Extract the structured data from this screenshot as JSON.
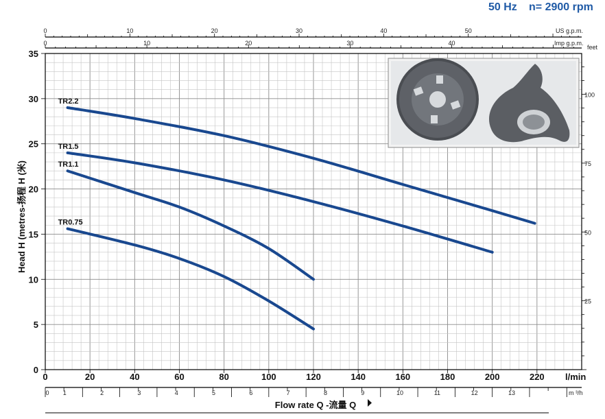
{
  "header": {
    "freq": "50 Hz",
    "speed": "n= 2900 rpm",
    "color": "#1f5aa6"
  },
  "chart_data": {
    "type": "line",
    "x_label": "Flow rate Q -流量 Q",
    "y_label": "Head H (metres-扬程 H (米)",
    "x_unit": "l/min",
    "y_unit_right": "feet",
    "xlim": [
      0,
      240
    ],
    "ylim": [
      0,
      35
    ],
    "x_ticks": [
      0,
      20,
      40,
      60,
      80,
      100,
      120,
      140,
      160,
      180,
      200,
      220
    ],
    "y_ticks": [
      0,
      5,
      10,
      15,
      20,
      25,
      30,
      35
    ],
    "feet_ticks": [
      25,
      50,
      75,
      100
    ],
    "m3h_label": "m ³/h",
    "m3h_ticks": [
      "0",
      "1",
      "2",
      "3",
      "4",
      "5",
      "6",
      "7",
      "8",
      "9",
      "10",
      "11",
      "12",
      "13"
    ],
    "usgpm_label": "US g.p.m.",
    "usgpm_ticks": [
      "0",
      "10",
      "20",
      "30",
      "40",
      "50"
    ],
    "impgpm_label": "Imp g.p.m.",
    "impgpm_ticks": [
      "0",
      "10",
      "20",
      "30",
      "40"
    ],
    "grid": true,
    "line_color": "#19488f",
    "series": [
      {
        "name": "TR2.2",
        "x": [
          10,
          40,
          80,
          120,
          160,
          200,
          219
        ],
        "y": [
          29.0,
          27.8,
          25.9,
          23.4,
          20.5,
          17.6,
          16.2
        ]
      },
      {
        "name": "TR1.5",
        "x": [
          10,
          40,
          80,
          120,
          160,
          200
        ],
        "y": [
          24.0,
          22.9,
          21.0,
          18.6,
          15.9,
          13.0
        ]
      },
      {
        "name": "TR1.1",
        "x": [
          10,
          40,
          60,
          80,
          100,
          120
        ],
        "y": [
          22.0,
          19.6,
          18.0,
          15.9,
          13.4,
          10.0
        ]
      },
      {
        "name": "TR0.75",
        "x": [
          10,
          40,
          60,
          80,
          100,
          120
        ],
        "y": [
          15.6,
          13.8,
          12.3,
          10.3,
          7.6,
          4.5
        ]
      }
    ]
  }
}
